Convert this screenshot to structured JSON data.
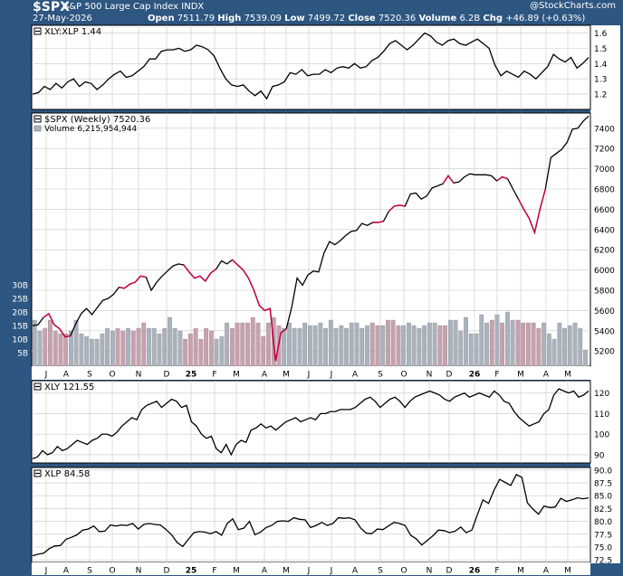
{
  "header": {
    "symbol": "$SPX",
    "name": "S&P 500 Large Cap Index",
    "exchange": "INDX",
    "date": "27-May-2026",
    "open_label": "Open",
    "open": "7511.79",
    "high_label": "High",
    "high": "7539.09",
    "low_label": "Low",
    "low": "7499.72",
    "close_label": "Close",
    "close": "7520.36",
    "volume_label": "Volume",
    "volume": "6.2B",
    "chg_label": "Chg",
    "chg": "+46.89 (+0.63%)",
    "brand": "@StockCharts.com"
  },
  "colors": {
    "up": "#000000",
    "down": "#cc0044",
    "vol_up": "#a9b2bd",
    "vol_down": "#c8a0ae",
    "grid": "#c8c8c8",
    "background": "#2d5680"
  },
  "x_axis_labels": [
    "J",
    "A",
    "S",
    "O",
    "N",
    "D",
    "25",
    "F",
    "M",
    "A",
    "M",
    "J",
    "J",
    "A",
    "S",
    "O",
    "N",
    "D",
    "26",
    "F",
    "M",
    "A",
    "M"
  ],
  "chart_data": [
    {
      "type": "line",
      "legend": "XLY:XLP 1.44",
      "ylim": [
        1.1,
        1.65
      ],
      "yticks": [
        "1.2",
        "1.3",
        "1.4",
        "1.5",
        "1.6"
      ],
      "ytick_values": [
        1.2,
        1.3,
        1.4,
        1.5,
        1.6
      ],
      "values": [
        1.2,
        1.21,
        1.25,
        1.23,
        1.27,
        1.24,
        1.28,
        1.3,
        1.25,
        1.28,
        1.27,
        1.23,
        1.26,
        1.3,
        1.33,
        1.35,
        1.31,
        1.32,
        1.35,
        1.38,
        1.43,
        1.43,
        1.48,
        1.49,
        1.49,
        1.5,
        1.48,
        1.49,
        1.52,
        1.51,
        1.49,
        1.45,
        1.37,
        1.3,
        1.26,
        1.25,
        1.26,
        1.22,
        1.19,
        1.22,
        1.17,
        1.25,
        1.26,
        1.28,
        1.34,
        1.33,
        1.36,
        1.32,
        1.33,
        1.33,
        1.36,
        1.34,
        1.37,
        1.38,
        1.37,
        1.4,
        1.37,
        1.38,
        1.42,
        1.44,
        1.48,
        1.53,
        1.55,
        1.52,
        1.49,
        1.52,
        1.56,
        1.6,
        1.58,
        1.54,
        1.52,
        1.55,
        1.56,
        1.53,
        1.52,
        1.54,
        1.56,
        1.53,
        1.5,
        1.39,
        1.32,
        1.35,
        1.33,
        1.31,
        1.35,
        1.33,
        1.3,
        1.34,
        1.38,
        1.46,
        1.43,
        1.41,
        1.44,
        1.37,
        1.4,
        1.44
      ]
    },
    {
      "type": "line",
      "legend": "$SPX (Weekly) 7520.36",
      "volume_legend": "Volume 6,215,954,944",
      "ylim": [
        5050,
        7550
      ],
      "yticks": [
        "5200",
        "5400",
        "5600",
        "5800",
        "6000",
        "6200",
        "6400",
        "6600",
        "6800",
        "7000",
        "7200",
        "7400"
      ],
      "ytick_values": [
        5200,
        5400,
        5600,
        5800,
        6000,
        6200,
        6400,
        6600,
        6800,
        7000,
        7200,
        7400
      ],
      "values": [
        5450,
        5460,
        5530,
        5570,
        5460,
        5420,
        5340,
        5350,
        5470,
        5570,
        5620,
        5560,
        5630,
        5700,
        5720,
        5760,
        5830,
        5820,
        5860,
        5880,
        5940,
        5930,
        5800,
        5880,
        5940,
        5990,
        6040,
        6060,
        6050,
        5980,
        5920,
        5940,
        5890,
        5970,
        6010,
        6090,
        6060,
        6100,
        6050,
        6000,
        5920,
        5800,
        5650,
        5600,
        5620,
        5100,
        5380,
        5420,
        5630,
        5920,
        5850,
        5950,
        5990,
        5980,
        6170,
        6280,
        6250,
        6290,
        6340,
        6380,
        6390,
        6460,
        6440,
        6470,
        6470,
        6480,
        6580,
        6630,
        6640,
        6630,
        6750,
        6760,
        6700,
        6730,
        6810,
        6830,
        6850,
        6930,
        6860,
        6870,
        6920,
        6950,
        6940,
        6940,
        6940,
        6930,
        6880,
        6920,
        6900,
        6800,
        6700,
        6600,
        6510,
        6370,
        6600,
        6800,
        7110,
        7150,
        7190,
        7260,
        7390,
        7400,
        7470,
        7520
      ],
      "red_ranges": [
        [
          2,
          6
        ],
        [
          16,
          20
        ],
        [
          28,
          33
        ],
        [
          37,
          46
        ],
        [
          63,
          64
        ],
        [
          66,
          68
        ],
        [
          76,
          77
        ],
        [
          86,
          87
        ],
        [
          90,
          94
        ]
      ],
      "volume": {
        "yticks": [
          "5B",
          "10B",
          "15B",
          "20B",
          "25B",
          "30B"
        ],
        "ytick_values": [
          5,
          10,
          15,
          20,
          25,
          30
        ],
        "vmax": 30,
        "values": [
          17,
          13,
          14,
          17,
          13,
          12,
          12,
          13,
          17,
          12,
          11,
          10,
          10,
          12,
          14,
          13,
          14,
          13,
          14,
          13,
          14,
          16,
          14,
          14,
          12,
          14,
          18,
          14,
          13,
          10,
          12,
          14,
          10,
          14,
          13,
          10,
          11,
          16,
          14,
          16,
          16,
          16,
          18,
          16,
          11,
          16,
          18,
          15,
          14,
          16,
          14,
          14,
          16,
          15,
          15,
          16,
          14,
          17,
          14,
          15,
          14,
          16,
          16,
          14,
          15,
          16,
          15,
          15,
          17,
          17,
          15,
          15,
          16,
          15,
          14,
          15,
          16,
          16,
          15,
          15,
          17,
          17,
          13,
          18,
          12,
          12,
          19,
          16,
          17,
          19,
          16,
          20,
          17,
          17,
          16,
          16,
          16,
          14,
          16,
          12,
          10,
          16,
          14,
          15,
          16,
          14,
          6
        ]
      }
    },
    {
      "type": "line",
      "legend": "XLY 121.55",
      "ylim": [
        86,
        126
      ],
      "yticks": [
        "90",
        "100",
        "110",
        "120"
      ],
      "ytick_values": [
        90,
        100,
        110,
        120
      ],
      "values": [
        88,
        89,
        92,
        90,
        91,
        94,
        92,
        93,
        95,
        97,
        96,
        95,
        97,
        98,
        100,
        100,
        99,
        101,
        104,
        106,
        108,
        107,
        112,
        114,
        115,
        116,
        113,
        115,
        117,
        116,
        113,
        114,
        106,
        104,
        100,
        98,
        99,
        93,
        91,
        95,
        90,
        95,
        97,
        96,
        102,
        103,
        105,
        103,
        104,
        102,
        104,
        106,
        107,
        108,
        106,
        107,
        108,
        107,
        110,
        110,
        111,
        111,
        112,
        112,
        112,
        113,
        115,
        117,
        118,
        116,
        113,
        115,
        117,
        118,
        116,
        113,
        116,
        118,
        119,
        120,
        121,
        120,
        119,
        117,
        116,
        118,
        119,
        120,
        118,
        119,
        120,
        119,
        118,
        121,
        119,
        116,
        115,
        111,
        108,
        106,
        104,
        105,
        106,
        110,
        112,
        119,
        122,
        121,
        120,
        121,
        118,
        119,
        121
      ]
    },
    {
      "type": "line",
      "legend": "XLP 84.58",
      "ylim": [
        72,
        90.5
      ],
      "yticks": [
        "72.5",
        "75.0",
        "77.5",
        "80.0",
        "82.5",
        "85.0",
        "87.5",
        "90.0"
      ],
      "ytick_values": [
        72.5,
        75,
        77.5,
        80,
        82.5,
        85,
        87.5,
        90
      ],
      "values": [
        73.3,
        73.6,
        73.8,
        74.7,
        75.2,
        75.3,
        76.5,
        76.9,
        77.4,
        78.3,
        78.5,
        79.1,
        78,
        78.1,
        79.3,
        79.1,
        79.3,
        79.2,
        79.6,
        78.5,
        79.4,
        79.6,
        79.4,
        79.3,
        78.4,
        77.4,
        75.9,
        75.1,
        76.5,
        77.8,
        78,
        77.9,
        77.6,
        78,
        77.3,
        79.6,
        80.5,
        78.4,
        78.7,
        80,
        77.4,
        77.9,
        78.8,
        79.2,
        80,
        80.1,
        80,
        80.7,
        80.4,
        80.3,
        78.8,
        79.2,
        79.8,
        79.2,
        79.6,
        80.7,
        80.6,
        80.7,
        80.3,
        78.7,
        77.7,
        77.6,
        78.5,
        78.4,
        79.1,
        79.8,
        79.6,
        79.2,
        77.3,
        76.6,
        75.4,
        76.3,
        77.2,
        78.3,
        78.2,
        77.8,
        78.1,
        78.9,
        77.8,
        78.3,
        81.3,
        84.2,
        83.5,
        86.1,
        88.2,
        87.6,
        87,
        89.1,
        88.6,
        83.6,
        82.4,
        81.4,
        83,
        82.7,
        82.8,
        84.5,
        83.9,
        84.2,
        84.6,
        84.4,
        84.58
      ]
    }
  ]
}
